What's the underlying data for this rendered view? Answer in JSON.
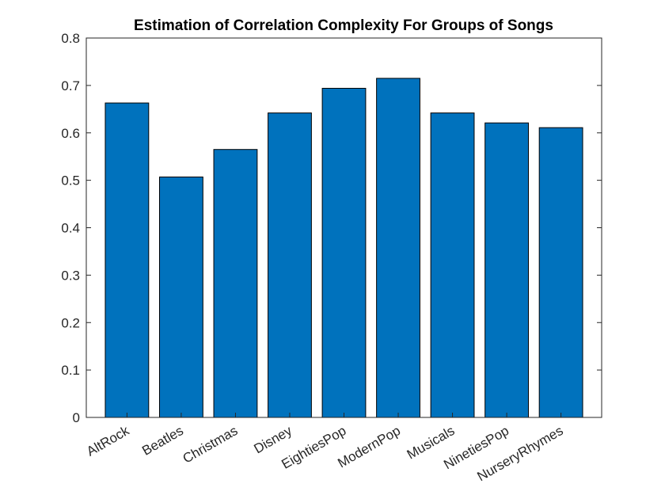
{
  "chart_data": {
    "type": "bar",
    "title": "Estimation of Correlation Complexity For Groups of Songs",
    "xlabel": "",
    "ylabel": "",
    "categories": [
      "AltRock",
      "Beatles",
      "Christmas",
      "Disney",
      "EightiesPop",
      "ModernPop",
      "Musicals",
      "NinetiesPop",
      "NurseryRhymes"
    ],
    "values": [
      0.663,
      0.507,
      0.565,
      0.642,
      0.694,
      0.715,
      0.642,
      0.621,
      0.611
    ],
    "ylim": [
      0,
      0.8
    ],
    "yticks": [
      "0",
      "0.1",
      "0.2",
      "0.3",
      "0.4",
      "0.5",
      "0.6",
      "0.7",
      "0.8"
    ],
    "grid": false,
    "legend": "none",
    "bar_color": "#0072BD",
    "edge_color": "#000000"
  }
}
